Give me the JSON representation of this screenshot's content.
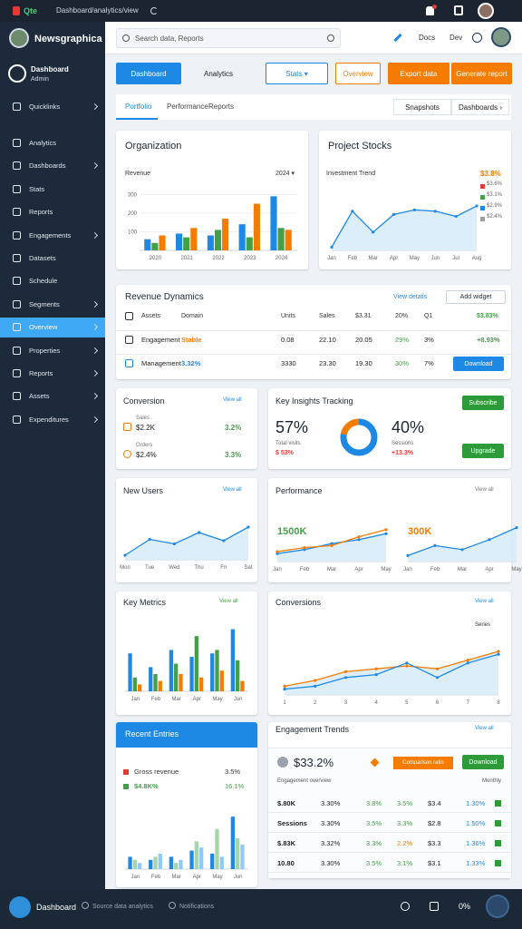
{
  "status_bar": {
    "app": "Qte",
    "url": "Dashboard/analytics/view"
  },
  "sidebar": {
    "brand": "Newsgraphica",
    "user_name": "Dashboard",
    "user_role": "Admin",
    "items": [
      {
        "label": "Quicklinks",
        "sub": true
      },
      {
        "label": "Analytics",
        "sub": false
      },
      {
        "label": "Dashboards",
        "sub": true
      },
      {
        "label": "Stats",
        "sub": false
      },
      {
        "label": "Reports",
        "sub": false
      },
      {
        "label": "Engagements",
        "sub": true
      },
      {
        "label": "Datasets",
        "sub": false
      },
      {
        "label": "Schedule",
        "sub": false
      },
      {
        "label": "Segments",
        "sub": true
      },
      {
        "label": "Overview",
        "sub": true,
        "active": true
      },
      {
        "label": "Properties",
        "sub": true
      },
      {
        "label": "Reports",
        "sub": true
      },
      {
        "label": "Assets",
        "sub": true
      },
      {
        "label": "Expenditures",
        "sub": true
      }
    ]
  },
  "header": {
    "search": "Search data, Reports",
    "links": [
      "Docs",
      "Dev"
    ]
  },
  "toolbar": [
    {
      "label": "Dashboard",
      "style": "primary"
    },
    {
      "label": "Analytics",
      "style": "plain"
    },
    {
      "label": "Stats ▾",
      "style": "outline-blue"
    },
    {
      "label": "Overview",
      "style": "outline-orange"
    },
    {
      "label": "Export data",
      "style": "orange"
    },
    {
      "label": "Generate report",
      "style": "orange"
    }
  ],
  "tabs": {
    "items": [
      "Portfolio",
      "Performance",
      "Reports"
    ],
    "active": 0,
    "actions": [
      "Snapshots",
      "Dashboards ›"
    ]
  },
  "organization": {
    "title": "Organization",
    "subtitle": "Revenue",
    "legend": "2024 ▾",
    "chart": {
      "type": "bar",
      "ylim": [
        0,
        350
      ],
      "yticks": [
        100,
        200,
        300
      ],
      "labels": [
        "2020",
        "2021",
        "2022",
        "2023",
        "2024"
      ],
      "series": [
        {
          "color": "#1e88e5",
          "values": [
            60,
            90,
            80,
            140,
            290
          ]
        },
        {
          "color": "#43a047",
          "values": [
            40,
            70,
            110,
            70,
            120
          ]
        },
        {
          "color": "#f57c00",
          "values": [
            80,
            120,
            170,
            250,
            110
          ]
        }
      ]
    }
  },
  "stocks": {
    "title": "Project Stocks",
    "subtitle": "Investment Trend",
    "legend": [
      {
        "label": "$3.8%",
        "color": "#f57c00"
      },
      {
        "label": "$3.6%",
        "color": "#e53935"
      },
      {
        "label": "$3.1%",
        "color": "#43a047"
      },
      {
        "label": "$2.9%",
        "color": "#1e88e5"
      },
      {
        "label": "$2.4%",
        "color": "#9e9e9e"
      }
    ],
    "chart": {
      "type": "line",
      "area": true,
      "ylim": [
        0,
        100
      ],
      "labels": [
        "Jan",
        "Feb",
        "Mar",
        "Apr",
        "May",
        "Jun",
        "Jul",
        "Aug"
      ],
      "series": [
        {
          "color": "#1e88e5",
          "values": [
            5,
            60,
            28,
            55,
            62,
            60,
            52,
            68
          ]
        }
      ]
    }
  },
  "revenue_table": {
    "title": "Revenue Dynamics",
    "link": "View details",
    "button": "Add widget",
    "columns": [
      "Assets",
      "Domain",
      "Units",
      "Sales",
      "$3.31",
      "20%",
      "Q1",
      "$3.83%"
    ],
    "rows": [
      [
        "Engagement",
        "Stable",
        "0.08",
        "22.10",
        "20.05",
        "29%",
        "3%",
        "+8.93%"
      ],
      [
        "Management",
        "3.32%",
        "3330",
        "23.30",
        "19.30",
        "30%",
        "7%",
        "Download"
      ]
    ]
  },
  "conversion": {
    "title": "Conversion",
    "link": "View all",
    "rows": [
      {
        "label": "$2.2K",
        "sub": "Sales",
        "value": "3.2%"
      },
      {
        "label": "$2.4%",
        "sub": "Orders",
        "value": "3.3%"
      }
    ]
  },
  "insights": {
    "title": "Key Insights Tracking",
    "left": {
      "value": "57%",
      "sub": "Total visits",
      "delta": "$ 53%"
    },
    "donut": {
      "values": [
        78,
        22
      ],
      "colors": [
        "#1e88e5",
        "#f57c00"
      ]
    },
    "right": {
      "value": "40%",
      "sub": "Sessions",
      "delta": "+13.3%"
    },
    "buttons": [
      "Subscribe",
      "Upgrade"
    ]
  },
  "new_users": {
    "title": "New Users",
    "link": "View all",
    "chart": {
      "type": "line",
      "area": true,
      "ylim": [
        0,
        100
      ],
      "labels": [
        "Mon",
        "Tue",
        "Wed",
        "Thu",
        "Fri",
        "Sat"
      ],
      "series": [
        {
          "color": "#1e88e5",
          "values": [
            10,
            45,
            35,
            60,
            42,
            72
          ]
        }
      ]
    }
  },
  "performance": {
    "title": "Performance",
    "link": "View all",
    "charts": [
      {
        "headline": "1500K",
        "color": "#43a047",
        "chart": {
          "type": "line",
          "area": true,
          "ylim": [
            0,
            100
          ],
          "labels": [
            "Jan",
            "Feb",
            "Mar",
            "Apr",
            "May"
          ],
          "series": [
            {
              "color": "#1e88e5",
              "values": [
                20,
                30,
                45,
                55,
                70
              ]
            },
            {
              "color": "#f57c00",
              "values": [
                25,
                35,
                40,
                62,
                80
              ]
            }
          ]
        }
      },
      {
        "headline": "300K",
        "color": "#f57c00",
        "chart": {
          "type": "line",
          "area": true,
          "ylim": [
            0,
            100
          ],
          "labels": [
            "Jan",
            "Feb",
            "Mar",
            "Apr",
            "May"
          ],
          "series": [
            {
              "color": "#1e88e5",
              "values": [
                15,
                40,
                30,
                55,
                85
              ]
            }
          ]
        }
      }
    ]
  },
  "key_metrics": {
    "title": "Key Metrics",
    "link": "View all",
    "chart": {
      "type": "bar",
      "ylim": [
        0,
        100
      ],
      "labels": [
        "Jan",
        "Feb",
        "Mar",
        "Apr",
        "May",
        "Jun"
      ],
      "series": [
        {
          "color": "#1e88e5",
          "values": [
            55,
            35,
            60,
            50,
            55,
            90
          ]
        },
        {
          "color": "#43a047",
          "values": [
            20,
            25,
            40,
            80,
            60,
            45
          ]
        },
        {
          "color": "#f57c00",
          "values": [
            10,
            15,
            25,
            20,
            30,
            15
          ]
        }
      ]
    }
  },
  "conversions": {
    "title": "Conversions",
    "link": "View all",
    "legend": "Series",
    "chart": {
      "type": "line",
      "area": true,
      "ylim": [
        0,
        100
      ],
      "labels": [
        "1",
        "2",
        "3",
        "4",
        "5",
        "6",
        "7",
        "8"
      ],
      "series": [
        {
          "color": "#f57c00",
          "values": [
            15,
            25,
            40,
            45,
            50,
            45,
            60,
            75
          ]
        },
        {
          "color": "#1e88e5",
          "values": [
            10,
            15,
            30,
            35,
            55,
            30,
            55,
            70
          ]
        }
      ]
    }
  },
  "recent": {
    "title": "Recent Entries",
    "rows": [
      {
        "label": "Gross revenue",
        "value": "3.5%"
      },
      {
        "label": "$4.8K%",
        "value": "16.1%"
      }
    ],
    "chart": {
      "type": "bar",
      "ylim": [
        0,
        100
      ],
      "labels": [
        "Jan",
        "Feb",
        "Mar",
        "Apr",
        "May",
        "Jun"
      ],
      "series": [
        {
          "color": "#1e88e5",
          "values": [
            20,
            15,
            20,
            30,
            25,
            85
          ]
        },
        {
          "color": "#a5d6a7",
          "values": [
            15,
            20,
            10,
            45,
            65,
            50
          ]
        },
        {
          "color": "#90caf9",
          "values": [
            10,
            25,
            15,
            35,
            20,
            40
          ]
        }
      ]
    }
  },
  "engagement": {
    "title": "Engagement Trends",
    "link": "View all",
    "headline": "$33.2%",
    "badge": "Comparison ratio",
    "button": "Download",
    "caption": "Engagement overview",
    "caption_right": "Monthly",
    "rows": [
      [
        "$.80K",
        "3.30%",
        "3.8%",
        "3.5%",
        "$3.4",
        "1.30%"
      ],
      [
        "Sessions",
        "3.30%",
        "3.5%",
        "3.3%",
        "$2.8",
        "1.50%"
      ],
      [
        "$.83K",
        "3.32%",
        "3.3%",
        "2.2%",
        "$3.3",
        "1.36%"
      ],
      [
        "10.80",
        "3.30%",
        "3.5%",
        "3.1%",
        "$3.1",
        "1.33%"
      ]
    ]
  },
  "bottom_bar": {
    "brand": "Dashboard",
    "texts": [
      "Source data analytics",
      "Notifications"
    ],
    "status": "0%"
  }
}
